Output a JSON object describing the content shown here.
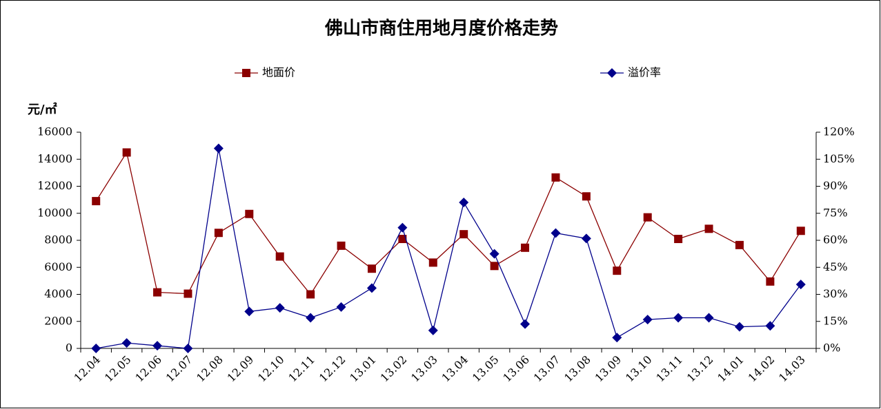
{
  "chart_data": {
    "type": "line",
    "title": "佛山市商住用地月度价格走势",
    "y_label": "元/㎡",
    "categories": [
      "12.04",
      "12.05",
      "12.06",
      "12.07",
      "12.08",
      "12.09",
      "12.10",
      "12.11",
      "12.12",
      "13.01",
      "13.02",
      "13.03",
      "13.04",
      "13.05",
      "13.06",
      "13.07",
      "13.08",
      "13.09",
      "13.10",
      "13.11",
      "13.12",
      "14.01",
      "14.02",
      "14.03"
    ],
    "series": [
      {
        "name": "地面价",
        "color": "#8b0000",
        "marker": "square",
        "values": [
          10900,
          14500,
          4150,
          4050,
          8550,
          9950,
          6800,
          4000,
          7600,
          5900,
          8100,
          6350,
          8450,
          6100,
          7450,
          12650,
          11250,
          5750,
          9700,
          8100,
          8850,
          7650,
          4950,
          8700
        ]
      },
      {
        "name": "溢价率",
        "color": "#00008b",
        "marker": "diamond",
        "axis": "y2",
        "values": [
          0,
          3,
          1.5,
          0,
          111,
          20.5,
          22.5,
          17,
          23,
          33.5,
          67,
          10,
          81,
          52.5,
          13.5,
          64,
          61,
          6,
          16,
          17,
          17,
          12,
          12.5,
          35.5
        ]
      }
    ],
    "ylim": [
      0,
      16000
    ],
    "yticks": [
      0,
      2000,
      4000,
      6000,
      8000,
      10000,
      12000,
      14000,
      16000
    ],
    "y2lim": [
      0,
      120
    ],
    "y2ticks": [
      {
        "value": 0,
        "label": "0%"
      },
      {
        "value": 15,
        "label": "15%"
      },
      {
        "value": 30,
        "label": "30%"
      },
      {
        "value": 45,
        "label": "45%"
      },
      {
        "value": 60,
        "label": "60%"
      },
      {
        "value": 75,
        "label": "75%"
      },
      {
        "value": 90,
        "label": "90%"
      },
      {
        "value": 105,
        "label": "105%"
      },
      {
        "value": 120,
        "label": "120%"
      }
    ],
    "grid": false,
    "legend": "top"
  }
}
